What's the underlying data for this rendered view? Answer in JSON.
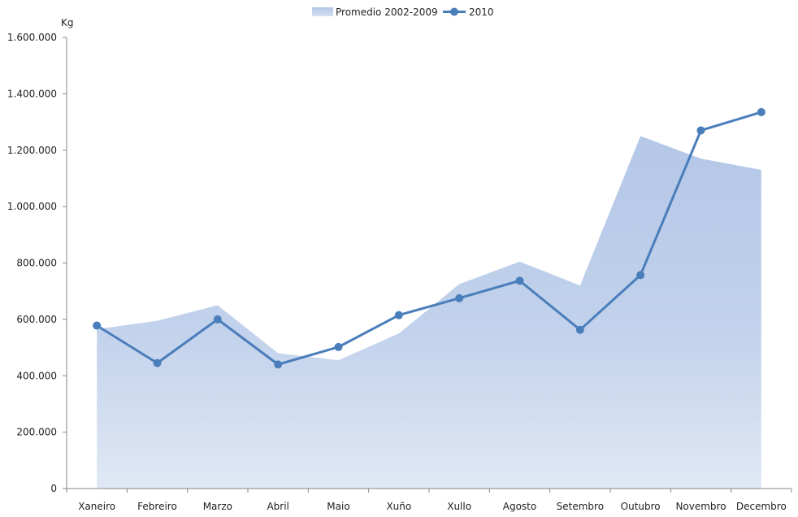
{
  "chart_data": {
    "type": "area",
    "unit_label": "Kg",
    "categories": [
      "Xaneiro",
      "Febreiro",
      "Marzo",
      "Abril",
      "Maio",
      "Xuño",
      "Xullo",
      "Agosto",
      "Setembro",
      "Outubro",
      "Novembro",
      "Decembro"
    ],
    "series": [
      {
        "name": "Promedio 2002-2009",
        "kind": "area",
        "color": "#b4c7e7",
        "values": [
          565000,
          595000,
          650000,
          480000,
          455000,
          550000,
          725000,
          805000,
          720000,
          1250000,
          1170000,
          1130000
        ]
      },
      {
        "name": "2010",
        "kind": "line",
        "color": "#4a7ebb",
        "values": [
          578000,
          445000,
          600000,
          440000,
          502000,
          615000,
          675000,
          737000,
          563000,
          757000,
          1270000,
          1335000
        ]
      }
    ],
    "y_ticks": [
      "0",
      "200.000",
      "400.000",
      "600.000",
      "800.000",
      "1.000.000",
      "1.200.000",
      "1.400.000",
      "1.600.000"
    ],
    "ylim": [
      0,
      1600000
    ],
    "ystep": 200000,
    "legend_position": "top",
    "grid": false
  }
}
